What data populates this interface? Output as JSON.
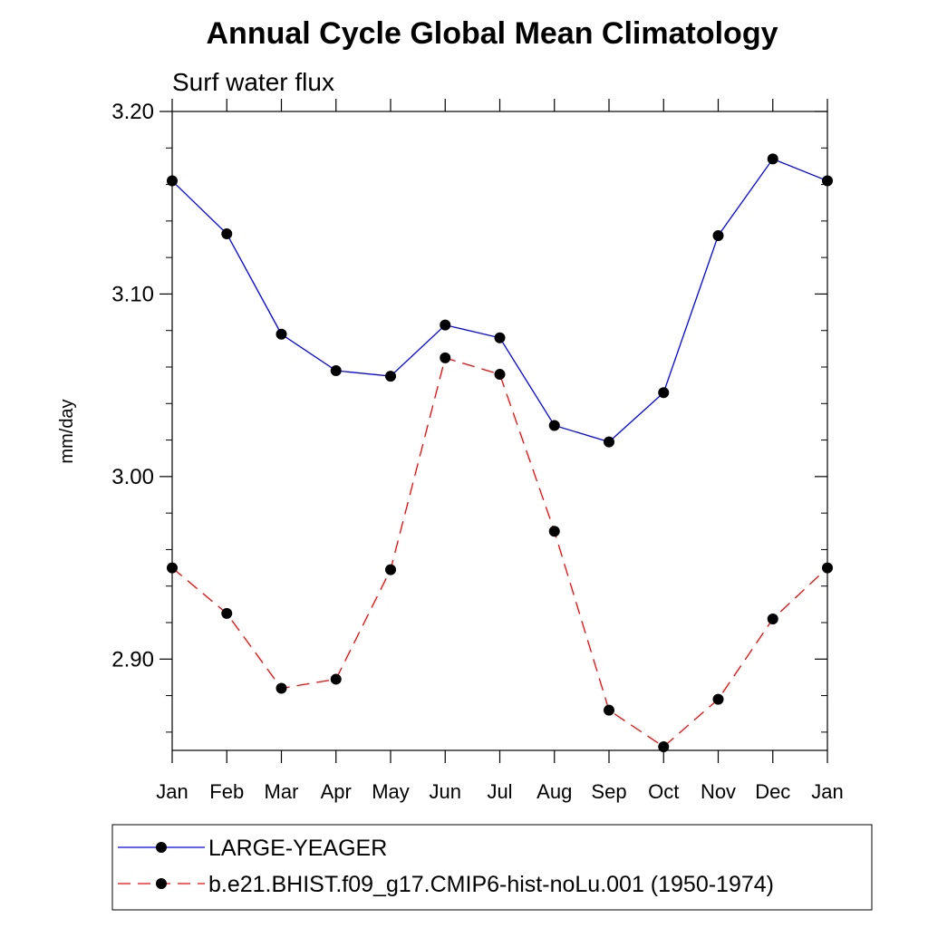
{
  "chart_data": {
    "type": "line",
    "title": "Annual Cycle Global Mean Climatology",
    "subtitle": "Surf water flux",
    "ylabel": "mm/day",
    "xlabel": "",
    "categories": [
      "Jan",
      "Feb",
      "Mar",
      "Apr",
      "May",
      "Jun",
      "Jul",
      "Aug",
      "Sep",
      "Oct",
      "Nov",
      "Dec",
      "Jan"
    ],
    "ylim": [
      2.85,
      3.2
    ],
    "yticks": [
      {
        "value": 2.9,
        "label": "2.90"
      },
      {
        "value": 3.0,
        "label": "3.00"
      },
      {
        "value": 3.1,
        "label": "3.10"
      },
      {
        "value": 3.2,
        "label": "3.20"
      }
    ],
    "grid": false,
    "legend_position": "bottom",
    "series": [
      {
        "name": "LARGE-YEAGER",
        "color": "#0000ff",
        "dash": "solid",
        "marker": "circle",
        "values": [
          3.162,
          3.133,
          3.078,
          3.058,
          3.055,
          3.083,
          3.076,
          3.028,
          3.019,
          3.046,
          3.132,
          3.174,
          3.162
        ]
      },
      {
        "name": "b.e21.BHIST.f09_g17.CMIP6-hist-noLu.001 (1950-1974)",
        "color": "#ff0000",
        "dash": "dashed",
        "marker": "circle",
        "values": [
          2.95,
          2.925,
          2.884,
          2.889,
          2.949,
          3.065,
          3.056,
          2.97,
          2.872,
          2.852,
          2.878,
          2.922,
          2.95
        ]
      }
    ]
  }
}
